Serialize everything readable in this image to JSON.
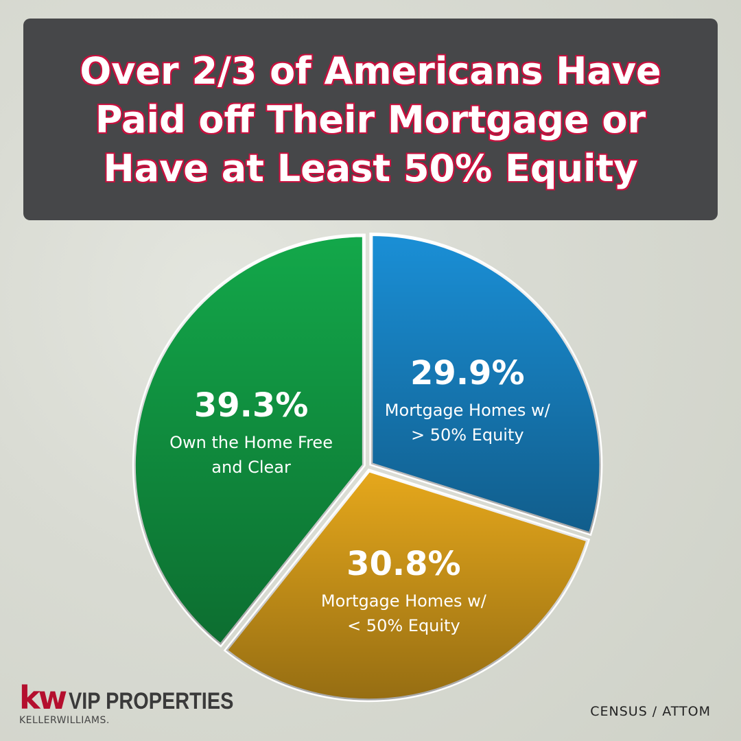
{
  "chart_data": {
    "type": "pie",
    "title": "Over 2/3 of Americans Have Paid off Their Mortgage or Have at Least 50% Equity",
    "categories": [
      "Mortgage Homes w/ > 50% Equity",
      "Mortgage Homes w/ < 50% Equity",
      "Own the Home Free and Clear"
    ],
    "values": [
      29.9,
      30.8,
      39.3
    ],
    "value_labels": [
      "29.9%",
      "30.8%",
      "39.3%"
    ],
    "colors": [
      "#1a8fd6",
      "#e6a81c",
      "#13a84a"
    ]
  },
  "footer": {
    "logo_mark": "kw",
    "logo_name": "VIP PROPERTIES",
    "logo_sub": "KELLERWILLIAMS.",
    "source": "CENSUS / ATTOM"
  }
}
